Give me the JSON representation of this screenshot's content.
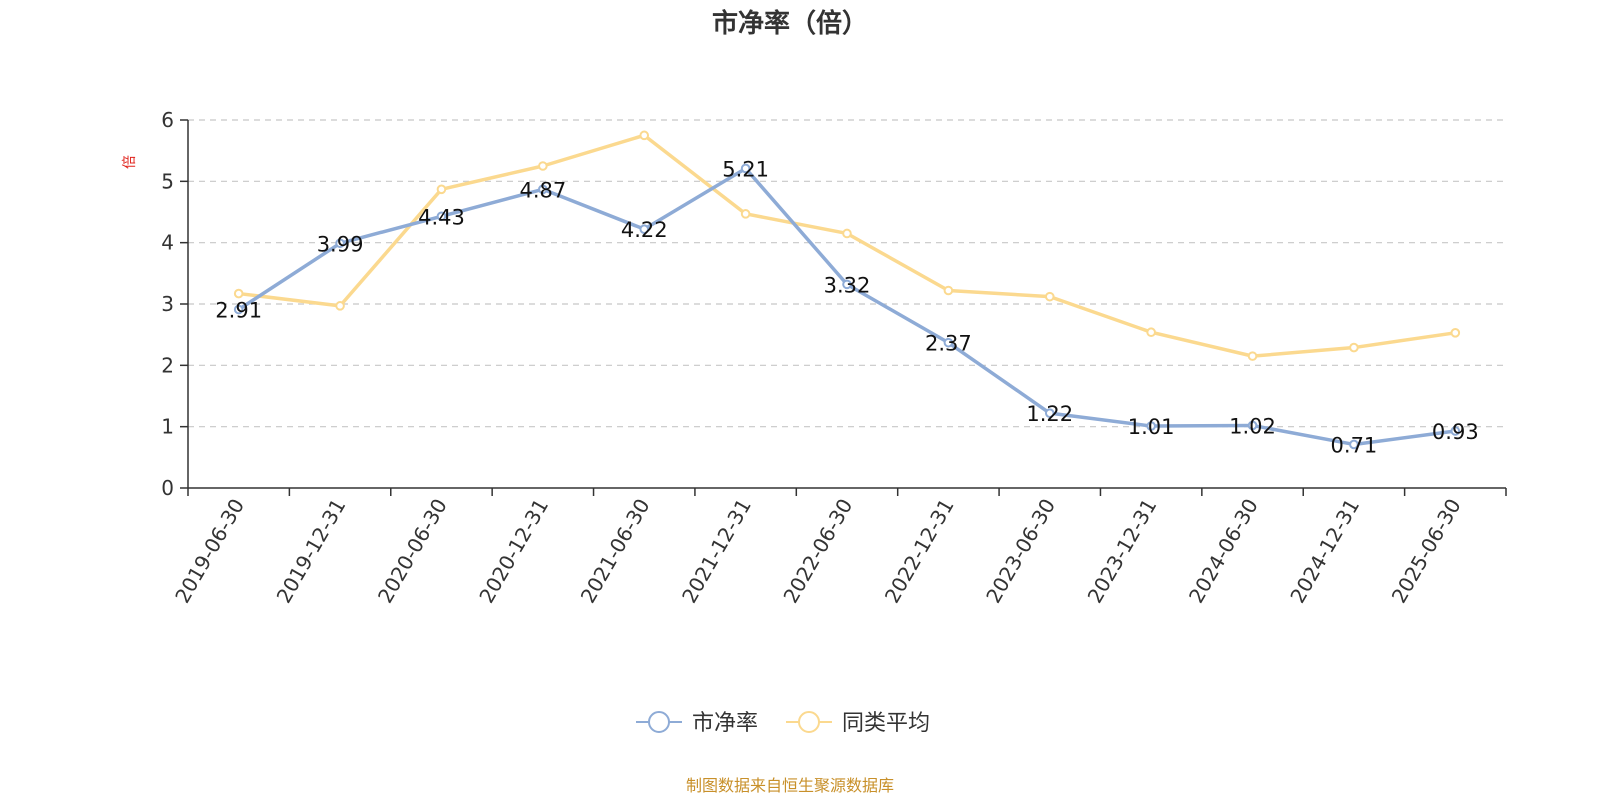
{
  "chart_data": {
    "type": "line",
    "title": "市净率（倍）",
    "ylabel": "倍",
    "xlabel": "",
    "categories": [
      "2019-06-30",
      "2019-12-31",
      "2020-06-30",
      "2020-12-31",
      "2021-06-30",
      "2021-12-31",
      "2022-06-30",
      "2022-12-31",
      "2023-06-30",
      "2023-12-31",
      "2024-06-30",
      "2024-12-31",
      "2025-06-30"
    ],
    "series": [
      {
        "name": "市净率",
        "color": "#8eabd6",
        "values": [
          2.91,
          3.99,
          4.43,
          4.87,
          4.22,
          5.21,
          3.32,
          2.37,
          1.22,
          1.01,
          1.02,
          0.71,
          0.93
        ],
        "labels": [
          "2.91",
          "3.99",
          "4.43",
          "4.87",
          "4.22",
          "5.21",
          "3.32",
          "2.37",
          "1.22",
          "1.01",
          "1.02",
          "0.71",
          "0.93"
        ]
      },
      {
        "name": "同类平均",
        "color": "#fbd98f",
        "values": [
          3.17,
          2.97,
          4.87,
          5.25,
          5.75,
          4.47,
          4.15,
          3.22,
          3.12,
          2.54,
          2.15,
          2.29,
          2.53
        ]
      }
    ],
    "ylim": [
      0,
      6
    ],
    "yticks": [
      "0",
      "1",
      "2",
      "3",
      "4",
      "5",
      "6"
    ],
    "grid": true,
    "legend_position": "bottom-center",
    "source": "制图数据来自恒生聚源数据库"
  }
}
